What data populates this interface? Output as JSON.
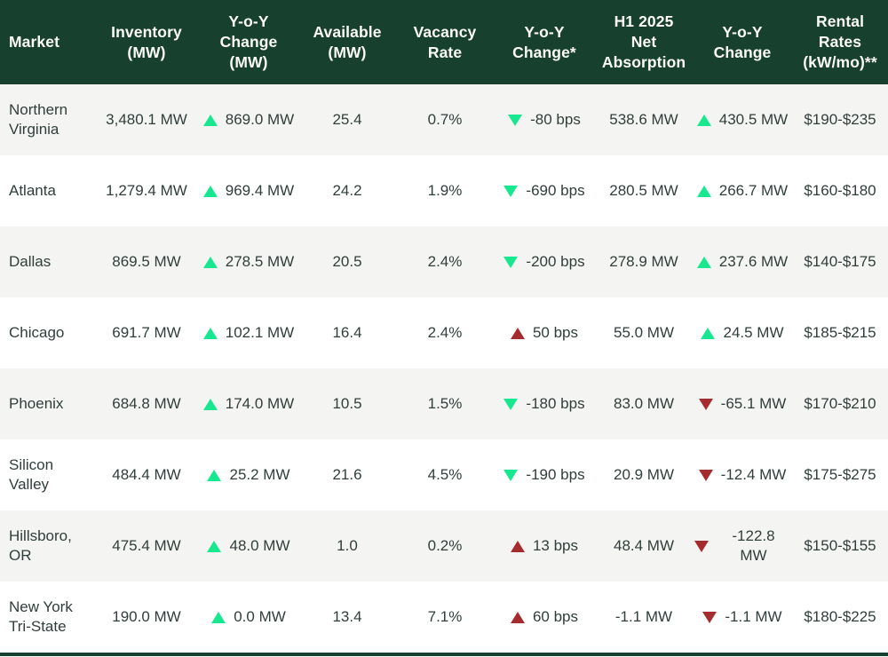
{
  "colors": {
    "header_bg": "#18402F",
    "header_text": "#FBFBF7",
    "body_text": "#303E3C",
    "row_bg": "#FFFFFF",
    "row_alt_bg": "#F4F4F2",
    "up_green": "#17E88F",
    "down_red": "#A52C2E"
  },
  "table": {
    "headers": [
      "Market",
      "Inventory\n(MW)",
      "Y-o-Y\nChange\n(MW)",
      "Available\n(MW)",
      "Vacancy\nRate",
      "Y-o-Y\nChange*",
      "H1 2025\nNet\nAbsorption",
      "Y-o-Y\nChange",
      "Rental\nRates\n(kW/mo)**"
    ]
  },
  "chart_data": {
    "type": "table",
    "columns": [
      "Market",
      "Inventory (MW)",
      "Y-o-Y Change (MW)",
      "Available (MW)",
      "Vacancy Rate",
      "Y-o-Y Change*",
      "H1 2025 Net Absorption",
      "Y-o-Y Change",
      "Rental Rates (kW/mo)**"
    ],
    "rows": [
      {
        "market": "Northern Virginia",
        "inventory": "3,480.1 MW",
        "inventory_change": {
          "value": "869.0 MW",
          "trend": "up",
          "sentiment": "positive"
        },
        "available": "25.4",
        "vacancy_rate": "0.7%",
        "vacancy_change": {
          "value": "-80 bps",
          "trend": "down",
          "sentiment": "positive"
        },
        "net_absorption": "538.6 MW",
        "absorption_change": {
          "value": "430.5 MW",
          "trend": "up",
          "sentiment": "positive"
        },
        "rental_rates": "$190-$235"
      },
      {
        "market": "Atlanta",
        "inventory": "1,279.4 MW",
        "inventory_change": {
          "value": "969.4 MW",
          "trend": "up",
          "sentiment": "positive"
        },
        "available": "24.2",
        "vacancy_rate": "1.9%",
        "vacancy_change": {
          "value": "-690 bps",
          "trend": "down",
          "sentiment": "positive"
        },
        "net_absorption": "280.5 MW",
        "absorption_change": {
          "value": "266.7 MW",
          "trend": "up",
          "sentiment": "positive"
        },
        "rental_rates": "$160-$180"
      },
      {
        "market": "Dallas",
        "inventory": "869.5 MW",
        "inventory_change": {
          "value": "278.5 MW",
          "trend": "up",
          "sentiment": "positive"
        },
        "available": "20.5",
        "vacancy_rate": "2.4%",
        "vacancy_change": {
          "value": "-200 bps",
          "trend": "down",
          "sentiment": "positive"
        },
        "net_absorption": "278.9 MW",
        "absorption_change": {
          "value": "237.6 MW",
          "trend": "up",
          "sentiment": "positive"
        },
        "rental_rates": "$140-$175"
      },
      {
        "market": "Chicago",
        "inventory": "691.7 MW",
        "inventory_change": {
          "value": "102.1 MW",
          "trend": "up",
          "sentiment": "positive"
        },
        "available": "16.4",
        "vacancy_rate": "2.4%",
        "vacancy_change": {
          "value": "50 bps",
          "trend": "up",
          "sentiment": "negative"
        },
        "net_absorption": "55.0 MW",
        "absorption_change": {
          "value": "24.5 MW",
          "trend": "up",
          "sentiment": "positive"
        },
        "rental_rates": "$185-$215"
      },
      {
        "market": "Phoenix",
        "inventory": "684.8 MW",
        "inventory_change": {
          "value": "174.0 MW",
          "trend": "up",
          "sentiment": "positive"
        },
        "available": "10.5",
        "vacancy_rate": "1.5%",
        "vacancy_change": {
          "value": "-180 bps",
          "trend": "down",
          "sentiment": "positive"
        },
        "net_absorption": "83.0 MW",
        "absorption_change": {
          "value": "-65.1 MW",
          "trend": "down",
          "sentiment": "negative"
        },
        "rental_rates": "$170-$210"
      },
      {
        "market": "Silicon Valley",
        "inventory": "484.4 MW",
        "inventory_change": {
          "value": "25.2 MW",
          "trend": "up",
          "sentiment": "positive"
        },
        "available": "21.6",
        "vacancy_rate": "4.5%",
        "vacancy_change": {
          "value": "-190 bps",
          "trend": "down",
          "sentiment": "positive"
        },
        "net_absorption": "20.9 MW",
        "absorption_change": {
          "value": "-12.4 MW",
          "trend": "down",
          "sentiment": "negative"
        },
        "rental_rates": "$175-$275"
      },
      {
        "market": "Hillsboro, OR",
        "inventory": "475.4 MW",
        "inventory_change": {
          "value": "48.0 MW",
          "trend": "up",
          "sentiment": "positive"
        },
        "available": "1.0",
        "vacancy_rate": "0.2%",
        "vacancy_change": {
          "value": "13 bps",
          "trend": "up",
          "sentiment": "negative"
        },
        "net_absorption": "48.4 MW",
        "absorption_change": {
          "value": "-122.8 MW",
          "trend": "down",
          "sentiment": "negative"
        },
        "rental_rates": "$150-$155"
      },
      {
        "market": "New York Tri-State",
        "inventory": "190.0 MW",
        "inventory_change": {
          "value": "0.0 MW",
          "trend": "up",
          "sentiment": "positive"
        },
        "available": "13.4",
        "vacancy_rate": "7.1%",
        "vacancy_change": {
          "value": "60 bps",
          "trend": "up",
          "sentiment": "negative"
        },
        "net_absorption": "-1.1 MW",
        "absorption_change": {
          "value": "-1.1 MW",
          "trend": "down",
          "sentiment": "negative"
        },
        "rental_rates": "$180-$225"
      }
    ]
  }
}
